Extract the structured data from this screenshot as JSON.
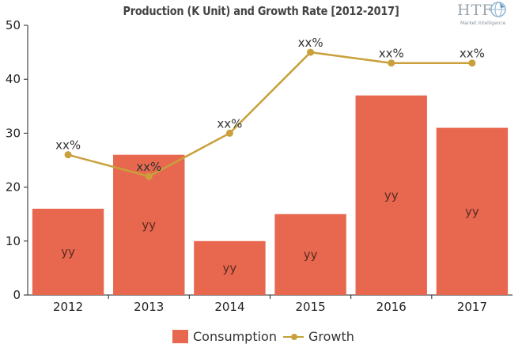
{
  "chart_data": {
    "type": "bar",
    "title": "Production (K Unit) and Growth Rate [2012-2017]",
    "categories": [
      "2012",
      "2013",
      "2014",
      "2015",
      "2016",
      "2017"
    ],
    "ylim": [
      0,
      50
    ],
    "yticks": [
      "0",
      "10",
      "20",
      "30",
      "40",
      "50"
    ],
    "series": [
      {
        "name": "Consumption",
        "kind": "bar",
        "color": "#e8684f",
        "values": [
          16,
          26,
          10,
          15,
          37,
          31
        ],
        "labels": [
          "yy",
          "yy",
          "yy",
          "yy",
          "yy",
          "yy"
        ]
      },
      {
        "name": "Growth",
        "kind": "line",
        "color": "#c9a03c",
        "values": [
          26,
          22,
          30,
          45,
          43,
          43
        ],
        "labels": [
          "xx%",
          "xx%",
          "xx%",
          "xx%",
          "xx%",
          "xx%"
        ]
      }
    ],
    "grid": false,
    "legend_position": "bottom"
  },
  "logo": {
    "text": "HTF",
    "subtext": "Market Intelligence",
    "icon": "globe-icon"
  }
}
